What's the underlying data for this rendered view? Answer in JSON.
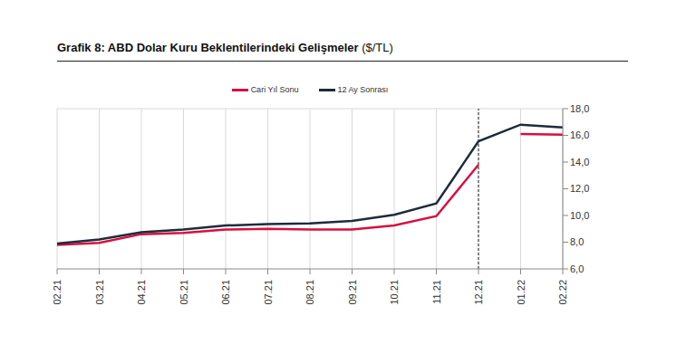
{
  "chart_data": {
    "type": "line",
    "title": "Grafik 8: ABD Dolar Kuru Beklentilerindeki Gelişmeler",
    "subtitle": "($/TL)",
    "categories": [
      "02.21",
      "03.21",
      "04.21",
      "05.21",
      "06.21",
      "07.21",
      "08.21",
      "09.21",
      "10.21",
      "11.21",
      "12.21",
      "01.22",
      "02.22"
    ],
    "series": [
      {
        "name": "Cari Yıl Sonu",
        "color": "#d6103f",
        "values": [
          7.8,
          7.95,
          8.6,
          8.7,
          8.95,
          9.0,
          8.95,
          8.95,
          9.25,
          9.95,
          13.8,
          null,
          null
        ]
      },
      {
        "name": "Cari Yıl Sonu",
        "color": "#d6103f",
        "values": [
          null,
          null,
          null,
          null,
          null,
          null,
          null,
          null,
          null,
          null,
          null,
          16.1,
          16.05
        ]
      },
      {
        "name": "12 Ay Sonrası",
        "color": "#1e2b3c",
        "values": [
          7.9,
          8.2,
          8.75,
          8.95,
          9.25,
          9.35,
          9.4,
          9.6,
          10.05,
          10.9,
          15.55,
          16.8,
          16.6
        ]
      }
    ],
    "ylim": [
      6,
      18
    ],
    "yticks": [
      {
        "value": 6,
        "label": "6,0"
      },
      {
        "value": 8,
        "label": "8,0"
      },
      {
        "value": 10,
        "label": "10,0"
      },
      {
        "value": 12,
        "label": "12,0"
      },
      {
        "value": 14,
        "label": "14,0"
      },
      {
        "value": 16,
        "label": "16,0"
      },
      {
        "value": 18,
        "label": "18,0"
      }
    ],
    "reference_line": "12.21",
    "grid": true,
    "legend": "top"
  }
}
